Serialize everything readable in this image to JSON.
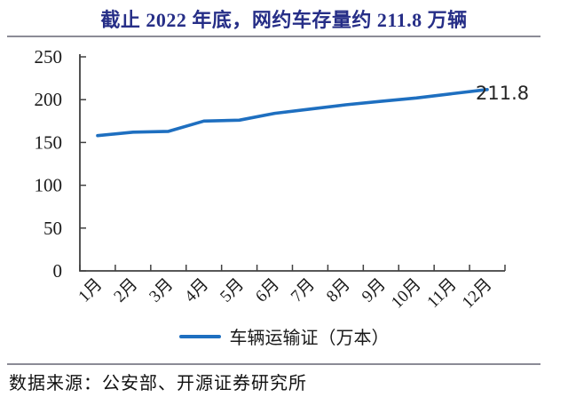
{
  "title": "截止 2022 年底，网约车存量约 211.8 万辆",
  "source": "数据来源：公安部、开源证券研究所",
  "legend": {
    "series_label": "车辆运输证（万本）"
  },
  "colors": {
    "title": "#262e87",
    "rule": "#8b8b96",
    "line": "#1e6fc0",
    "axis": "#404040",
    "tick_label": "#1a1a1a",
    "data_label": "#262626"
  },
  "chart_data": {
    "type": "line",
    "categories": [
      "1月",
      "2月",
      "3月",
      "4月",
      "5月",
      "6月",
      "7月",
      "8月",
      "9月",
      "10月",
      "11月",
      "12月"
    ],
    "series": [
      {
        "name": "车辆运输证（万本）",
        "values": [
          158,
          162,
          163,
          175,
          176,
          184,
          189,
          194,
          198,
          202,
          207,
          211.8
        ]
      }
    ],
    "end_label": "211.8",
    "yticks": [
      0,
      50,
      100,
      150,
      200,
      250
    ],
    "ylim": [
      0,
      250
    ],
    "xlabel": "",
    "ylabel": "",
    "grid": false,
    "legend_position": "bottom",
    "title": "截止 2022 年底，网约车存量约 211.8 万辆"
  }
}
